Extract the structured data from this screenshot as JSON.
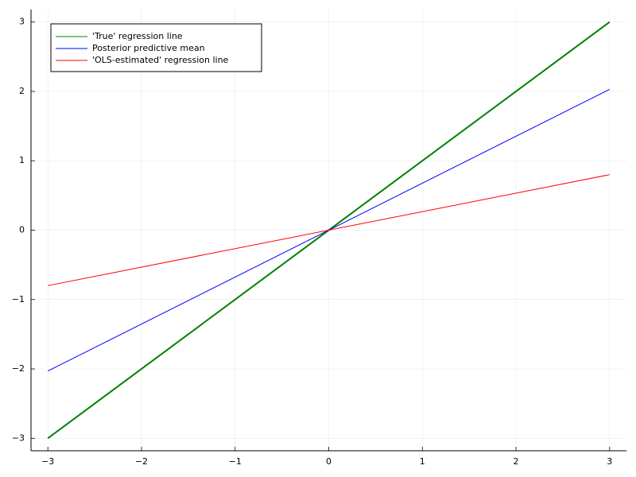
{
  "chart_data": {
    "type": "line",
    "x": [
      -3,
      3
    ],
    "series": [
      {
        "name": "'True' regression line",
        "color": "#008000",
        "values": [
          -3,
          3
        ],
        "width": 2
      },
      {
        "name": "Posterior predictive mean",
        "color": "#0000ff",
        "values": [
          -2.03,
          2.03
        ],
        "width": 1
      },
      {
        "name": "'OLS-estimated' regression line",
        "color": "#ff0000",
        "values": [
          -0.8,
          0.8
        ],
        "width": 1
      }
    ],
    "xlim": [
      -3.18,
      3.18
    ],
    "ylim": [
      -3.18,
      3.18
    ],
    "xticks": [
      {
        "value": -3,
        "label": "−3"
      },
      {
        "value": -2,
        "label": "−2"
      },
      {
        "value": -1,
        "label": "−1"
      },
      0,
      1,
      2,
      3
    ],
    "yticks": [
      {
        "value": -3,
        "label": "−3"
      },
      {
        "value": -2,
        "label": "−2"
      },
      {
        "value": -1,
        "label": "−1"
      },
      0,
      1,
      2,
      3
    ],
    "grid": true,
    "legend": "top-left"
  }
}
